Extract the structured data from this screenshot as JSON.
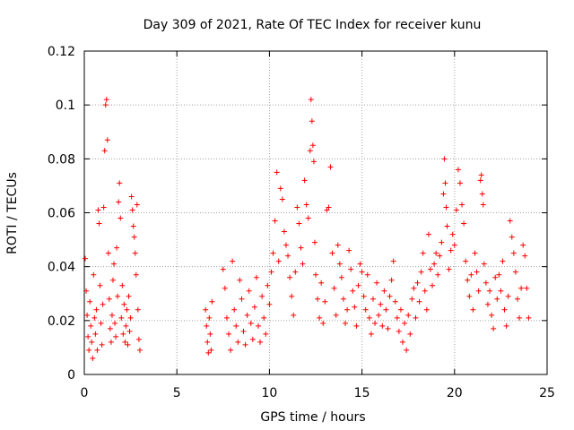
{
  "chart_data": {
    "type": "scatter",
    "title": "Day 309 of 2021, Rate Of TEC Index for receiver kunu",
    "xlabel": "GPS time / hours",
    "ylabel": "ROTI / TECUs",
    "xlim": [
      0,
      25
    ],
    "ylim": [
      0,
      0.12
    ],
    "x_ticks": [
      0,
      5,
      10,
      15,
      20,
      25
    ],
    "x_tick_labels": [
      "0",
      "5",
      "10",
      "15",
      "20",
      "25"
    ],
    "y_ticks": [
      0,
      0.02,
      0.04,
      0.06,
      0.08,
      0.1,
      0.12
    ],
    "y_tick_labels": [
      "0",
      "0.02",
      "0.04",
      "0.06",
      "0.08",
      "0.1",
      "0.12"
    ],
    "grid": true,
    "marker": "+",
    "series": [
      {
        "name": "ROTI",
        "color": "#ff0000",
        "points": [
          [
            0.05,
            0.043
          ],
          [
            0.1,
            0.031
          ],
          [
            0.15,
            0.022
          ],
          [
            0.2,
            0.014
          ],
          [
            0.25,
            0.009
          ],
          [
            0.3,
            0.027
          ],
          [
            0.35,
            0.018
          ],
          [
            0.4,
            0.012
          ],
          [
            0.45,
            0.006
          ],
          [
            0.5,
            0.037
          ],
          [
            0.55,
            0.021
          ],
          [
            0.6,
            0.015
          ],
          [
            0.65,
            0.024
          ],
          [
            0.7,
            0.009
          ],
          [
            0.75,
            0.061
          ],
          [
            0.8,
            0.056
          ],
          [
            0.85,
            0.033
          ],
          [
            0.9,
            0.019
          ],
          [
            0.95,
            0.011
          ],
          [
            1.0,
            0.026
          ],
          [
            1.05,
            0.062
          ],
          [
            1.1,
            0.083
          ],
          [
            1.15,
            0.1
          ],
          [
            1.2,
            0.102
          ],
          [
            1.25,
            0.087
          ],
          [
            1.3,
            0.045
          ],
          [
            1.35,
            0.028
          ],
          [
            1.4,
            0.017
          ],
          [
            1.45,
            0.012
          ],
          [
            1.5,
            0.022
          ],
          [
            1.55,
            0.035
          ],
          [
            1.6,
            0.041
          ],
          [
            1.65,
            0.019
          ],
          [
            1.7,
            0.014
          ],
          [
            1.75,
            0.047
          ],
          [
            1.8,
            0.029
          ],
          [
            1.85,
            0.064
          ],
          [
            1.9,
            0.071
          ],
          [
            1.95,
            0.058
          ],
          [
            2.0,
            0.021
          ],
          [
            2.05,
            0.033
          ],
          [
            2.1,
            0.015
          ],
          [
            2.15,
            0.026
          ],
          [
            2.2,
            0.012
          ],
          [
            2.25,
            0.018
          ],
          [
            2.3,
            0.024
          ],
          [
            2.35,
            0.011
          ],
          [
            2.4,
            0.029
          ],
          [
            2.45,
            0.016
          ],
          [
            2.5,
            0.021
          ],
          [
            2.55,
            0.066
          ],
          [
            2.6,
            0.061
          ],
          [
            2.65,
            0.055
          ],
          [
            2.7,
            0.051
          ],
          [
            2.75,
            0.045
          ],
          [
            2.8,
            0.037
          ],
          [
            2.85,
            0.063
          ],
          [
            2.9,
            0.024
          ],
          [
            2.95,
            0.013
          ],
          [
            3.0,
            0.009
          ],
          [
            6.55,
            0.024
          ],
          [
            6.6,
            0.018
          ],
          [
            6.65,
            0.012
          ],
          [
            6.7,
            0.008
          ],
          [
            6.75,
            0.021
          ],
          [
            6.8,
            0.015
          ],
          [
            6.85,
            0.009
          ],
          [
            6.9,
            0.027
          ],
          [
            7.5,
            0.039
          ],
          [
            7.6,
            0.032
          ],
          [
            7.7,
            0.021
          ],
          [
            7.8,
            0.015
          ],
          [
            7.9,
            0.009
          ],
          [
            8.0,
            0.042
          ],
          [
            8.1,
            0.024
          ],
          [
            8.2,
            0.018
          ],
          [
            8.3,
            0.012
          ],
          [
            8.4,
            0.035
          ],
          [
            8.5,
            0.028
          ],
          [
            8.6,
            0.016
          ],
          [
            8.7,
            0.011
          ],
          [
            8.8,
            0.022
          ],
          [
            8.9,
            0.031
          ],
          [
            9.0,
            0.019
          ],
          [
            9.1,
            0.013
          ],
          [
            9.2,
            0.025
          ],
          [
            9.3,
            0.036
          ],
          [
            9.4,
            0.018
          ],
          [
            9.5,
            0.012
          ],
          [
            9.6,
            0.029
          ],
          [
            9.7,
            0.021
          ],
          [
            9.8,
            0.015
          ],
          [
            9.9,
            0.033
          ],
          [
            10.0,
            0.026
          ],
          [
            10.1,
            0.038
          ],
          [
            10.2,
            0.045
          ],
          [
            10.3,
            0.057
          ],
          [
            10.4,
            0.075
          ],
          [
            10.5,
            0.042
          ],
          [
            10.6,
            0.069
          ],
          [
            10.7,
            0.065
          ],
          [
            10.8,
            0.053
          ],
          [
            10.9,
            0.048
          ],
          [
            11.0,
            0.044
          ],
          [
            11.1,
            0.036
          ],
          [
            11.2,
            0.029
          ],
          [
            11.3,
            0.022
          ],
          [
            11.4,
            0.038
          ],
          [
            11.5,
            0.062
          ],
          [
            11.6,
            0.056
          ],
          [
            11.7,
            0.047
          ],
          [
            11.8,
            0.041
          ],
          [
            11.9,
            0.072
          ],
          [
            12.0,
            0.063
          ],
          [
            12.1,
            0.058
          ],
          [
            12.2,
            0.083
          ],
          [
            12.25,
            0.102
          ],
          [
            12.3,
            0.094
          ],
          [
            12.35,
            0.085
          ],
          [
            12.4,
            0.079
          ],
          [
            12.45,
            0.049
          ],
          [
            12.5,
            0.037
          ],
          [
            12.6,
            0.028
          ],
          [
            12.7,
            0.021
          ],
          [
            12.8,
            0.034
          ],
          [
            12.9,
            0.019
          ],
          [
            13.0,
            0.027
          ],
          [
            13.1,
            0.061
          ],
          [
            13.2,
            0.062
          ],
          [
            13.3,
            0.077
          ],
          [
            13.4,
            0.045
          ],
          [
            13.5,
            0.032
          ],
          [
            13.6,
            0.022
          ],
          [
            13.7,
            0.048
          ],
          [
            13.8,
            0.041
          ],
          [
            13.9,
            0.036
          ],
          [
            14.0,
            0.028
          ],
          [
            14.1,
            0.019
          ],
          [
            14.2,
            0.024
          ],
          [
            14.3,
            0.046
          ],
          [
            14.4,
            0.039
          ],
          [
            14.5,
            0.031
          ],
          [
            14.6,
            0.025
          ],
          [
            14.7,
            0.018
          ],
          [
            14.8,
            0.033
          ],
          [
            14.9,
            0.041
          ],
          [
            15.0,
            0.038
          ],
          [
            15.1,
            0.029
          ],
          [
            15.2,
            0.024
          ],
          [
            15.3,
            0.037
          ],
          [
            15.4,
            0.021
          ],
          [
            15.5,
            0.015
          ],
          [
            15.6,
            0.028
          ],
          [
            15.7,
            0.019
          ],
          [
            15.8,
            0.034
          ],
          [
            15.9,
            0.022
          ],
          [
            16.0,
            0.026
          ],
          [
            16.1,
            0.018
          ],
          [
            16.2,
            0.031
          ],
          [
            16.3,
            0.024
          ],
          [
            16.4,
            0.017
          ],
          [
            16.5,
            0.029
          ],
          [
            16.6,
            0.035
          ],
          [
            16.7,
            0.042
          ],
          [
            16.8,
            0.027
          ],
          [
            16.9,
            0.021
          ],
          [
            17.0,
            0.016
          ],
          [
            17.1,
            0.024
          ],
          [
            17.2,
            0.012
          ],
          [
            17.3,
            0.019
          ],
          [
            17.4,
            0.009
          ],
          [
            17.5,
            0.022
          ],
          [
            17.6,
            0.015
          ],
          [
            17.7,
            0.028
          ],
          [
            17.8,
            0.032
          ],
          [
            17.9,
            0.021
          ],
          [
            18.0,
            0.034
          ],
          [
            18.1,
            0.027
          ],
          [
            18.2,
            0.038
          ],
          [
            18.3,
            0.045
          ],
          [
            18.4,
            0.031
          ],
          [
            18.5,
            0.024
          ],
          [
            18.6,
            0.052
          ],
          [
            18.7,
            0.039
          ],
          [
            18.8,
            0.033
          ],
          [
            18.9,
            0.041
          ],
          [
            19.0,
            0.045
          ],
          [
            19.1,
            0.037
          ],
          [
            19.2,
            0.044
          ],
          [
            19.3,
            0.049
          ],
          [
            19.4,
            0.067
          ],
          [
            19.45,
            0.08
          ],
          [
            19.5,
            0.071
          ],
          [
            19.55,
            0.062
          ],
          [
            19.6,
            0.055
          ],
          [
            19.7,
            0.039
          ],
          [
            19.8,
            0.046
          ],
          [
            19.9,
            0.052
          ],
          [
            20.0,
            0.048
          ],
          [
            20.1,
            0.061
          ],
          [
            20.2,
            0.076
          ],
          [
            20.3,
            0.071
          ],
          [
            20.4,
            0.063
          ],
          [
            20.5,
            0.056
          ],
          [
            20.6,
            0.042
          ],
          [
            20.7,
            0.035
          ],
          [
            20.8,
            0.029
          ],
          [
            20.9,
            0.037
          ],
          [
            21.0,
            0.024
          ],
          [
            21.1,
            0.045
          ],
          [
            21.2,
            0.038
          ],
          [
            21.3,
            0.031
          ],
          [
            21.4,
            0.072
          ],
          [
            21.45,
            0.074
          ],
          [
            21.5,
            0.067
          ],
          [
            21.55,
            0.063
          ],
          [
            21.6,
            0.041
          ],
          [
            21.7,
            0.034
          ],
          [
            21.8,
            0.026
          ],
          [
            21.9,
            0.031
          ],
          [
            22.0,
            0.022
          ],
          [
            22.1,
            0.017
          ],
          [
            22.2,
            0.036
          ],
          [
            22.3,
            0.028
          ],
          [
            22.4,
            0.037
          ],
          [
            22.5,
            0.031
          ],
          [
            22.6,
            0.042
          ],
          [
            22.7,
            0.024
          ],
          [
            22.8,
            0.018
          ],
          [
            22.9,
            0.029
          ],
          [
            23.0,
            0.057
          ],
          [
            23.1,
            0.051
          ],
          [
            23.2,
            0.045
          ],
          [
            23.3,
            0.038
          ],
          [
            23.4,
            0.028
          ],
          [
            23.5,
            0.021
          ],
          [
            23.6,
            0.032
          ],
          [
            23.7,
            0.048
          ],
          [
            23.8,
            0.044
          ],
          [
            23.9,
            0.032
          ],
          [
            24.0,
            0.021
          ]
        ]
      }
    ]
  }
}
